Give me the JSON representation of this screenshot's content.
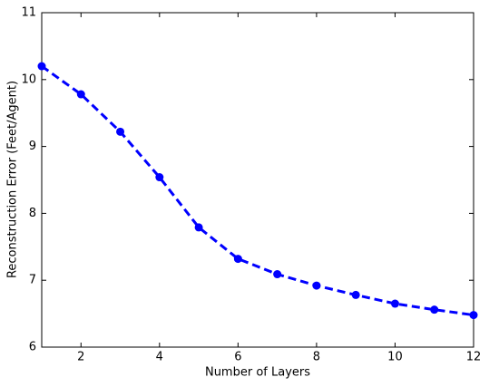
{
  "chart_data": {
    "type": "line",
    "x_label": "Number of Layers",
    "y_label": "Reconstruction Error (Feet/Agent)",
    "x": [
      1,
      2,
      3,
      4,
      5,
      6,
      7,
      8,
      9,
      10,
      11,
      12
    ],
    "series": [
      {
        "color": "#0000ff",
        "values": [
          10.2,
          9.78,
          9.22,
          8.54,
          7.79,
          7.32,
          7.09,
          6.92,
          6.78,
          6.65,
          6.56,
          6.48
        ]
      }
    ],
    "xlim": [
      1,
      12
    ],
    "xticks": [
      2,
      4,
      6,
      8,
      10,
      12
    ],
    "ylim": [
      6,
      11
    ],
    "yticks": [
      6,
      7,
      8,
      9,
      10,
      11
    ]
  }
}
